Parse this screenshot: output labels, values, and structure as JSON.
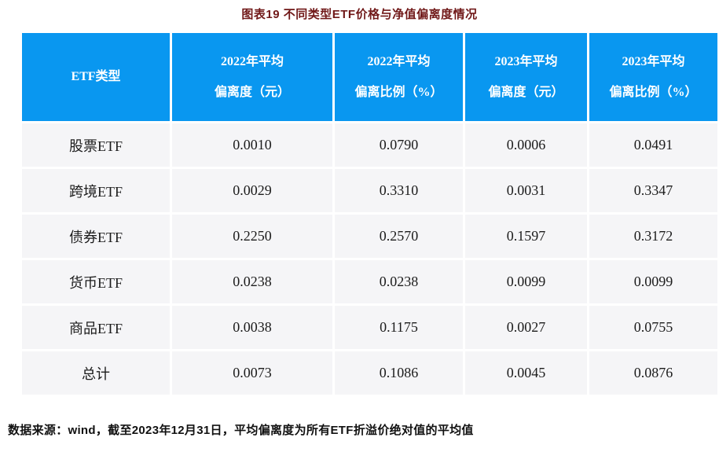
{
  "title": "图表19  不同类型ETF价格与净值偏离度情况",
  "colors": {
    "header_bg": "#0997f0",
    "header_text": "#ffffff",
    "title_text": "#701818",
    "body_row_bg": "#f5f5f7",
    "body_text": "#1c1c1c"
  },
  "table": {
    "headers": [
      {
        "line1": "ETF类型",
        "line2": ""
      },
      {
        "line1": "2022年平均",
        "line2": "偏离度（元）"
      },
      {
        "line1": "2022年平均",
        "line2": "偏离比例（%）"
      },
      {
        "line1": "2023年平均",
        "line2": "偏离度（元）"
      },
      {
        "line1": "2023年平均",
        "line2": "偏离比例（%）"
      }
    ],
    "rows": [
      {
        "label": "股票ETF",
        "values": [
          "0.0010",
          "0.0790",
          "0.0006",
          "0.0491"
        ]
      },
      {
        "label": "跨境ETF",
        "values": [
          "0.0029",
          "0.3310",
          "0.0031",
          "0.3347"
        ]
      },
      {
        "label": "债券ETF",
        "values": [
          "0.2250",
          "0.2570",
          "0.1597",
          "0.3172"
        ]
      },
      {
        "label": "货币ETF",
        "values": [
          "0.0238",
          "0.0238",
          "0.0099",
          "0.0099"
        ]
      },
      {
        "label": "商品ETF",
        "values": [
          "0.0038",
          "0.1175",
          "0.0027",
          "0.0755"
        ]
      },
      {
        "label": "总计",
        "values": [
          "0.0073",
          "0.1086",
          "0.0045",
          "0.0876"
        ]
      }
    ]
  },
  "footer": {
    "source_note": "数据来源：wind，截至2023年12月31日，平均偏离度为所有ETF折溢价绝对值的平均值"
  },
  "chart_data": {
    "type": "table",
    "title": "图表19 不同类型ETF价格与净值偏离度情况",
    "columns": [
      "ETF类型",
      "2022年平均偏离度（元）",
      "2022年平均偏离比例（%）",
      "2023年平均偏离度（元）",
      "2023年平均偏离比例（%）"
    ],
    "rows": [
      [
        "股票ETF",
        0.001,
        0.079,
        0.0006,
        0.0491
      ],
      [
        "跨境ETF",
        0.0029,
        0.331,
        0.0031,
        0.3347
      ],
      [
        "债券ETF",
        0.225,
        0.257,
        0.1597,
        0.3172
      ],
      [
        "货币ETF",
        0.0238,
        0.0238,
        0.0099,
        0.0099
      ],
      [
        "商品ETF",
        0.0038,
        0.1175,
        0.0027,
        0.0755
      ],
      [
        "总计",
        0.0073,
        0.1086,
        0.0045,
        0.0876
      ]
    ],
    "source_note": "数据来源：wind，截至2023年12月31日，平均偏离度为所有ETF折溢价绝对值的平均值"
  }
}
